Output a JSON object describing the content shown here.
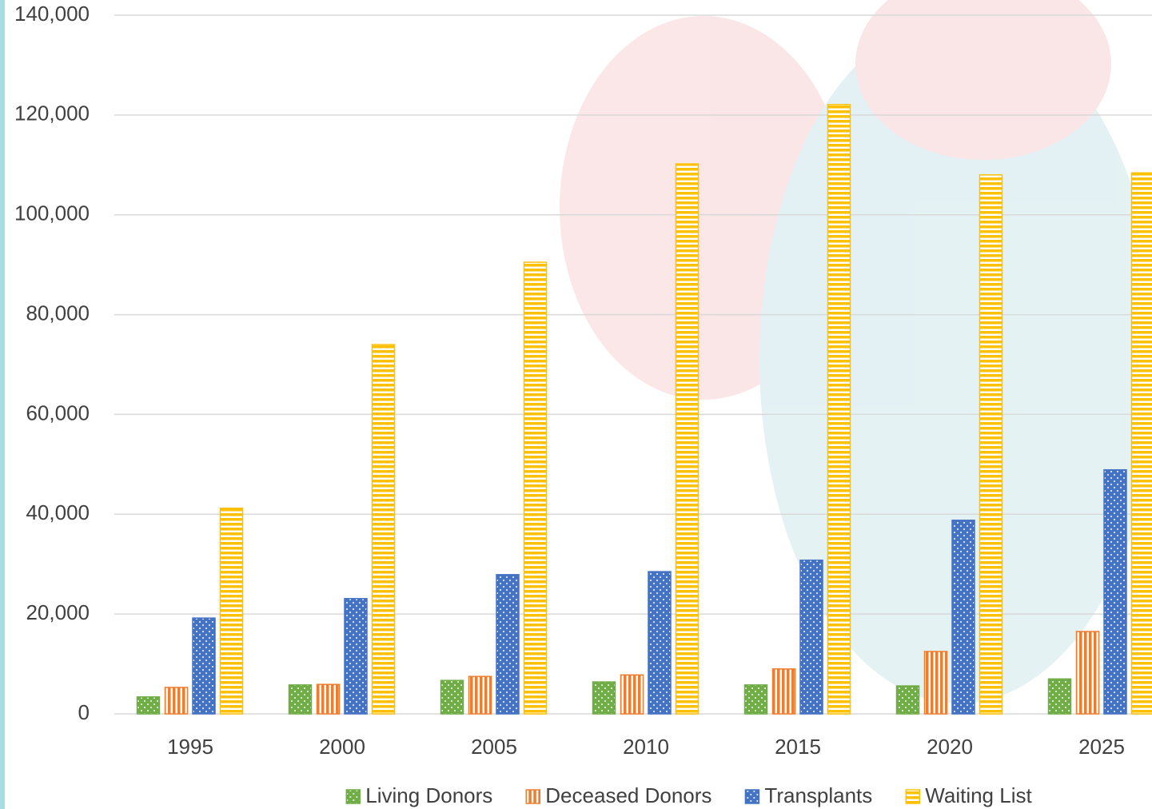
{
  "chart_data": {
    "type": "bar",
    "categories": [
      "1995",
      "2000",
      "2005",
      "2010",
      "2015",
      "2020",
      "2025"
    ],
    "series": [
      {
        "name": "Living Donors",
        "color": "#70ad47",
        "values": [
          3400,
          5800,
          6700,
          6400,
          5800,
          5600,
          7000
        ]
      },
      {
        "name": "Deceased Donors",
        "color": "#ed7d31",
        "values": [
          5300,
          5900,
          7500,
          7800,
          9000,
          12500,
          16500
        ]
      },
      {
        "name": "Transplants",
        "color": "#4472c4",
        "values": [
          19200,
          23100,
          27900,
          28500,
          30800,
          38800,
          48900
        ]
      },
      {
        "name": "Waiting List",
        "color": "#ffc000",
        "values": [
          41200,
          74000,
          90500,
          110200,
          122100,
          108000,
          108400
        ]
      }
    ],
    "ylim": [
      0,
      140000
    ],
    "yticks": [
      0,
      {
        "value": 20000,
        "label": "20,000"
      },
      {
        "value": 40000,
        "label": "40,000"
      },
      {
        "value": 60000,
        "label": "60,000"
      },
      {
        "value": 80000,
        "label": "80,000"
      },
      {
        "value": 100000,
        "label": "100,000"
      },
      {
        "value": 120000,
        "label": "120,000"
      },
      {
        "value": 140000,
        "label": "140,000"
      }
    ],
    "grid": true,
    "legend": "bottom"
  }
}
